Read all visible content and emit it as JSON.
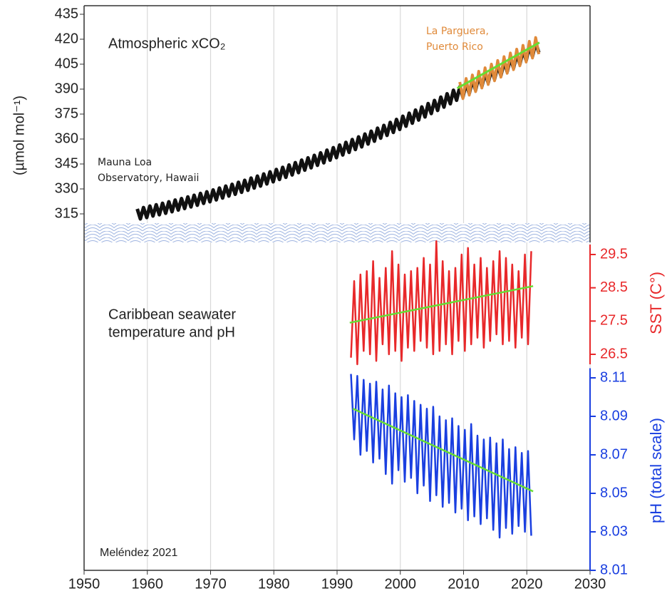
{
  "chart_data": [
    {
      "type": "line",
      "title": "Atmospheric xCO₂",
      "ylabel": "(µmol mol⁻¹)",
      "xlim": [
        1950,
        2030
      ],
      "xticks": [
        1950,
        1960,
        1970,
        1980,
        1990,
        2000,
        2010,
        2020,
        2030
      ],
      "grid": true,
      "ylim": [
        315,
        435
      ],
      "yticks": [
        315,
        330,
        345,
        360,
        375,
        390,
        405,
        420,
        435
      ],
      "series": [
        {
          "label": [
            "Mauna Loa",
            "Observatory, Hawaii"
          ],
          "color": "#111111",
          "x": [
            1958.4,
            1958.9,
            1959.4,
            1959.9,
            1960.4,
            1960.9,
            1961.4,
            1961.9,
            1962.4,
            1962.9,
            1963.4,
            1963.9,
            1964.4,
            1964.9,
            1965.4,
            1965.9,
            1966.4,
            1966.9,
            1967.4,
            1967.9,
            1968.4,
            1968.9,
            1969.4,
            1969.9,
            1970.4,
            1970.9,
            1971.4,
            1971.9,
            1972.4,
            1972.9,
            1973.4,
            1973.9,
            1974.4,
            1974.9,
            1975.4,
            1975.9,
            1976.4,
            1976.9,
            1977.4,
            1977.9,
            1978.4,
            1978.9,
            1979.4,
            1979.9,
            1980.4,
            1980.9,
            1981.4,
            1981.9,
            1982.4,
            1982.9,
            1983.4,
            1983.9,
            1984.4,
            1984.9,
            1985.4,
            1985.9,
            1986.4,
            1986.9,
            1987.4,
            1987.9,
            1988.4,
            1988.9,
            1989.4,
            1989.9,
            1990.4,
            1990.9,
            1991.4,
            1991.9,
            1992.4,
            1992.9,
            1993.4,
            1993.9,
            1994.4,
            1994.9,
            1995.4,
            1995.9,
            1996.4,
            1996.9,
            1997.4,
            1997.9,
            1998.4,
            1998.9,
            1999.4,
            1999.9,
            2000.4,
            2000.9,
            2001.4,
            2001.9,
            2002.4,
            2002.9,
            2003.4,
            2003.9,
            2004.4,
            2004.9,
            2005.4,
            2005.9,
            2006.4,
            2006.9,
            2007.4,
            2007.9,
            2008.4,
            2008.9,
            2009.4,
            2009.9,
            2010.4,
            2010.9,
            2011.4,
            2011.9,
            2012.4,
            2012.9,
            2013.4,
            2013.9,
            2014.4,
            2014.9,
            2015.4,
            2015.9,
            2016.4,
            2016.9,
            2017.4,
            2017.9,
            2018.4,
            2018.9,
            2019.4,
            2019.9,
            2020.4,
            2020.9,
            2021.4,
            2021.9
          ],
          "values": [
            318.0,
            312.0,
            318.8,
            312.8,
            319.7,
            313.7,
            320.5,
            314.5,
            321.4,
            315.4,
            322.3,
            316.3,
            323.3,
            317.3,
            324.2,
            318.2,
            325.2,
            319.2,
            326.2,
            320.2,
            327.3,
            321.3,
            328.3,
            322.3,
            329.4,
            323.4,
            330.5,
            324.5,
            331.7,
            325.7,
            332.8,
            326.8,
            334.0,
            328.0,
            335.2,
            329.2,
            336.5,
            330.5,
            337.7,
            331.7,
            339.0,
            333.0,
            340.3,
            334.3,
            341.7,
            335.7,
            343.0,
            337.0,
            344.4,
            338.4,
            345.8,
            339.8,
            347.3,
            341.3,
            348.7,
            342.7,
            350.2,
            344.2,
            351.7,
            345.7,
            353.3,
            347.3,
            354.8,
            348.8,
            356.4,
            350.4,
            358.0,
            352.0,
            359.7,
            353.7,
            361.3,
            355.3,
            363.0,
            357.0,
            364.7,
            358.7,
            366.5,
            360.5,
            368.2,
            362.2,
            370.0,
            364.0,
            371.8,
            365.8,
            373.7,
            367.7,
            375.5,
            369.5,
            377.4,
            371.4,
            379.3,
            373.3,
            381.3,
            375.3,
            383.2,
            377.2,
            385.2,
            379.2,
            387.2,
            381.2,
            389.3,
            383.3,
            391.3,
            385.3,
            393.4,
            387.4,
            395.5,
            389.5,
            397.7,
            391.7,
            399.8,
            393.8,
            402.0,
            396.0,
            404.2,
            398.2,
            406.5,
            400.5,
            408.7,
            402.7,
            411.0,
            405.0,
            413.3,
            407.3,
            415.7,
            409.7,
            418.0,
            412.0
          ]
        },
        {
          "label": [
            "La Parguera,",
            "Puerto Rico"
          ],
          "color": "#e08a3a",
          "x": [
            2009.4,
            2009.9,
            2010.4,
            2010.9,
            2011.4,
            2011.9,
            2012.4,
            2012.9,
            2013.4,
            2013.9,
            2014.4,
            2014.9,
            2015.4,
            2015.9,
            2016.4,
            2016.9,
            2017.4,
            2017.9,
            2018.4,
            2018.9,
            2019.4,
            2019.9,
            2020.4,
            2020.9,
            2021.4,
            2021.9
          ],
          "values": [
            394.3,
            384.3,
            396.4,
            386.4,
            398.5,
            388.5,
            400.7,
            390.7,
            402.8,
            392.8,
            405.0,
            395.0,
            407.2,
            397.2,
            409.5,
            399.5,
            411.7,
            401.7,
            414.0,
            404.0,
            416.3,
            406.3,
            418.7,
            408.7,
            421.0,
            411.0
          ]
        },
        {
          "color": "#66dd33",
          "x": [
            2009,
            2022
          ],
          "values": [
            390.5,
            418
          ]
        }
      ]
    },
    {
      "type": "line",
      "title": [
        "Caribbean seawater",
        "temperature and pH"
      ],
      "ylabel": "SST (C°)",
      "color": "#e8282a",
      "ylim": [
        26.2,
        29.8
      ],
      "yticks": [
        26.5,
        27.5,
        28.5,
        29.5
      ],
      "series": [
        {
          "color": "#e8282a",
          "x": [
            1992.2,
            1992.7,
            1993.2,
            1993.7,
            1994.2,
            1994.7,
            1995.2,
            1995.7,
            1996.2,
            1996.7,
            1997.2,
            1997.7,
            1998.2,
            1998.7,
            1999.2,
            1999.7,
            2000.2,
            2000.7,
            2001.2,
            2001.7,
            2002.2,
            2002.7,
            2003.2,
            2003.7,
            2004.2,
            2004.7,
            2005.2,
            2005.7,
            2006.2,
            2006.7,
            2007.2,
            2007.7,
            2008.2,
            2008.7,
            2009.2,
            2009.7,
            2010.2,
            2010.7,
            2011.2,
            2011.7,
            2012.2,
            2012.7,
            2013.2,
            2013.7,
            2014.2,
            2014.7,
            2015.2,
            2015.7,
            2016.2,
            2016.7,
            2017.2,
            2017.7,
            2018.2,
            2018.7,
            2019.2,
            2019.7,
            2020.2,
            2020.7
          ],
          "values": [
            26.4,
            28.7,
            26.2,
            28.9,
            26.6,
            29.0,
            26.5,
            29.3,
            26.3,
            28.8,
            26.8,
            29.1,
            26.5,
            29.6,
            26.6,
            29.2,
            26.3,
            28.9,
            26.7,
            29.0,
            26.6,
            29.1,
            26.9,
            29.4,
            26.7,
            29.2,
            26.5,
            29.9,
            26.6,
            29.3,
            26.8,
            29.0,
            26.5,
            29.1,
            26.9,
            29.5,
            26.6,
            29.7,
            26.8,
            29.2,
            27.0,
            29.4,
            26.7,
            29.1,
            26.9,
            29.3,
            27.1,
            29.6,
            26.8,
            29.4,
            26.9,
            29.2,
            26.7,
            29.0,
            27.0,
            29.5,
            26.8,
            29.6
          ]
        },
        {
          "color": "#66dd33",
          "x": [
            1992,
            2021
          ],
          "values": [
            27.45,
            28.55
          ]
        }
      ]
    },
    {
      "type": "line",
      "ylabel": "pH (total scale)",
      "color": "#1a3fe0",
      "ylim": [
        8.01,
        8.115
      ],
      "yticks": [
        8.01,
        8.03,
        8.05,
        8.07,
        8.09,
        8.11
      ],
      "series": [
        {
          "color": "#1a3fe0",
          "x": [
            1992.2,
            1992.7,
            1993.2,
            1993.7,
            1994.2,
            1994.7,
            1995.2,
            1995.7,
            1996.2,
            1996.7,
            1997.2,
            1997.7,
            1998.2,
            1998.7,
            1999.2,
            1999.7,
            2000.2,
            2000.7,
            2001.2,
            2001.7,
            2002.2,
            2002.7,
            2003.2,
            2003.7,
            2004.2,
            2004.7,
            2005.2,
            2005.7,
            2006.2,
            2006.7,
            2007.2,
            2007.7,
            2008.2,
            2008.7,
            2009.2,
            2009.7,
            2010.2,
            2010.7,
            2011.2,
            2011.7,
            2012.2,
            2012.7,
            2013.2,
            2013.7,
            2014.2,
            2014.7,
            2015.2,
            2015.7,
            2016.2,
            2016.7,
            2017.2,
            2017.7,
            2018.2,
            2018.7,
            2019.2,
            2019.7,
            2020.2,
            2020.7
          ],
          "values": [
            8.112,
            8.078,
            8.111,
            8.07,
            8.109,
            8.072,
            8.107,
            8.066,
            8.108,
            8.068,
            8.104,
            8.06,
            8.106,
            8.055,
            8.102,
            8.062,
            8.1,
            8.056,
            8.101,
            8.058,
            8.098,
            8.05,
            8.096,
            8.054,
            8.094,
            8.046,
            8.095,
            8.049,
            8.09,
            8.043,
            8.088,
            8.045,
            8.089,
            8.04,
            8.085,
            8.042,
            8.083,
            8.036,
            8.086,
            8.038,
            8.08,
            8.034,
            8.078,
            8.037,
            8.079,
            8.031,
            8.076,
            8.027,
            8.078,
            8.032,
            8.073,
            8.029,
            8.074,
            8.033,
            8.071,
            8.03,
            8.072,
            8.028
          ]
        },
        {
          "color": "#66dd33",
          "x": [
            1992.5,
            2021
          ],
          "values": [
            8.094,
            8.051
          ]
        }
      ]
    }
  ],
  "credit": "Meléndez 2021"
}
